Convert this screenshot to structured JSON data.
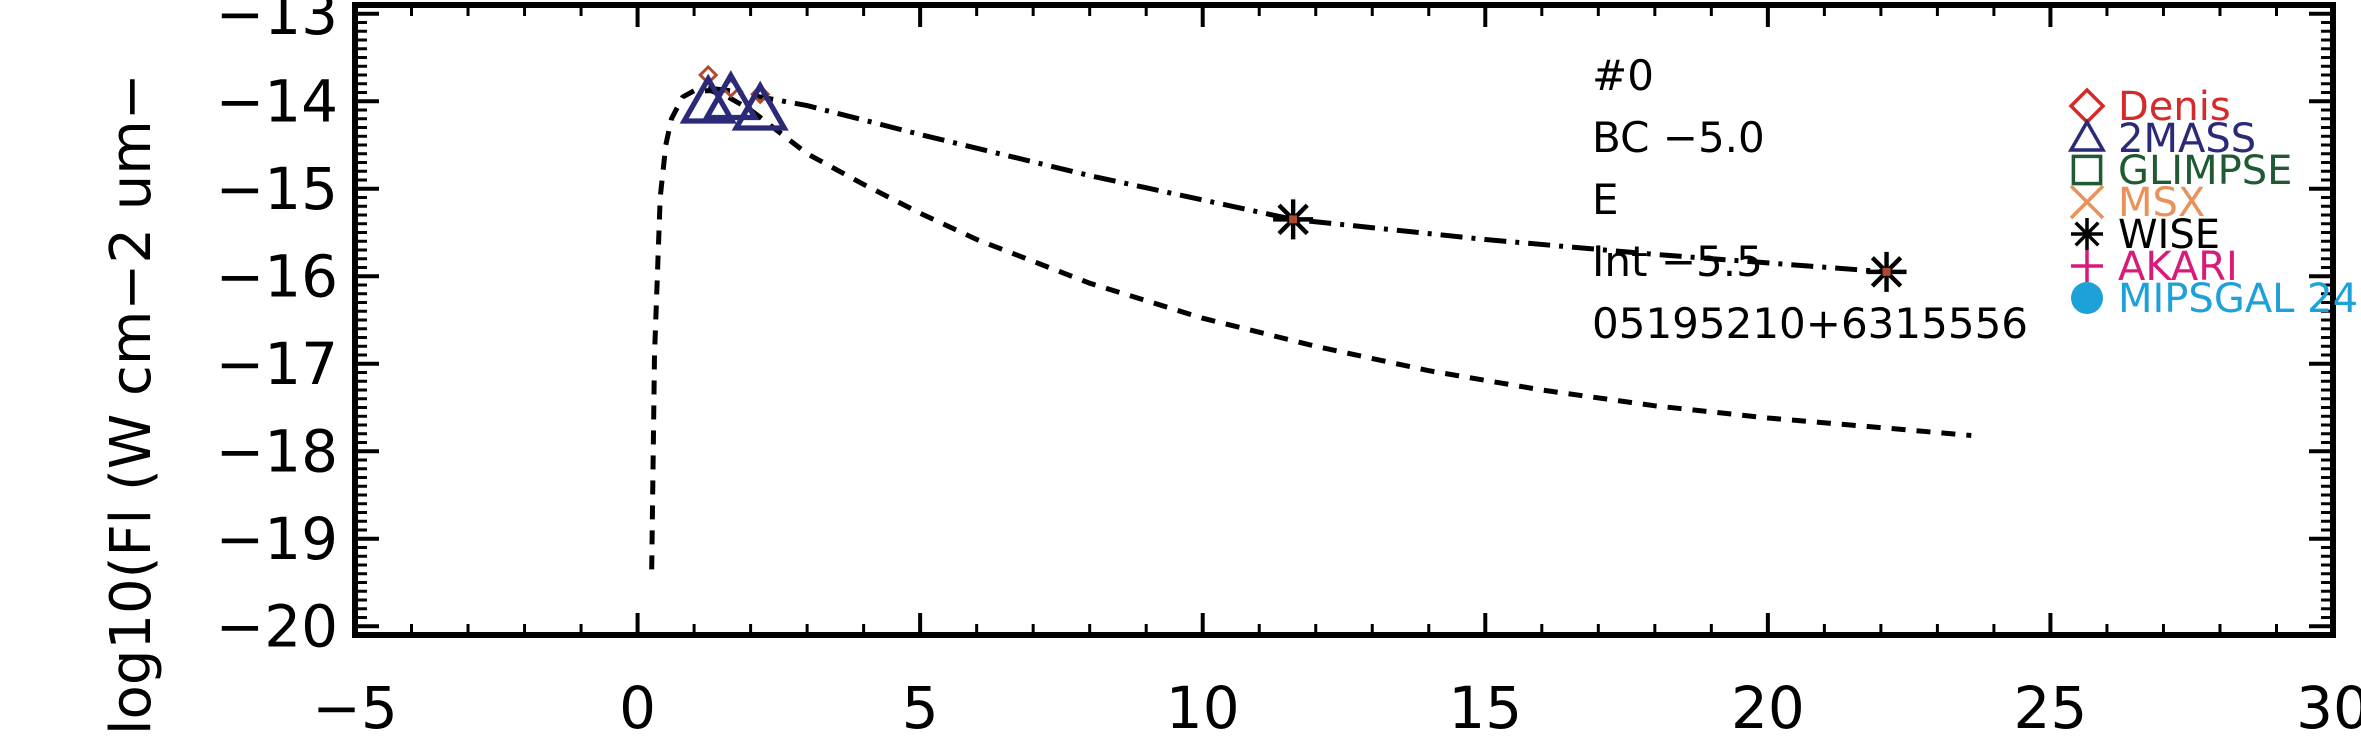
{
  "chart_data": {
    "type": "scatter",
    "ylabel": "log10(Fl (W cm−2 um−",
    "xlim": [
      -5,
      30
    ],
    "ylim": [
      -20.1,
      -12.9
    ],
    "x_ticks": [
      -5,
      0,
      5,
      10,
      15,
      20,
      25,
      30
    ],
    "x_tick_labels": [
      "−5",
      "0",
      "5",
      "10",
      "15",
      "20",
      "25",
      "30"
    ],
    "y_ticks": [
      -20,
      -19,
      -18,
      -17,
      -16,
      -15,
      -14,
      -13
    ],
    "y_tick_labels": [
      "−20",
      "−19",
      "−18",
      "−17",
      "−16",
      "−15",
      "−14",
      "−13"
    ],
    "annotations": [
      "#0",
      "BC  −5.0",
      "E",
      "Int  −5.5",
      "05195210+6315556"
    ],
    "legend": {
      "placement": "right",
      "entries": [
        {
          "name": "Denis",
          "marker": "diamond",
          "color": "#d42a2a"
        },
        {
          "name": "2MASS",
          "marker": "triangle",
          "color": "#2a2a78"
        },
        {
          "name": "GLIMPSE",
          "marker": "square",
          "color": "#1f5a34"
        },
        {
          "name": "MSX",
          "marker": "x",
          "color": "#e8925a"
        },
        {
          "name": "WISE",
          "marker": "asterisk",
          "color": "#000000"
        },
        {
          "name": "AKARI",
          "marker": "plus",
          "color": "#d81b78"
        },
        {
          "name": "MIPSGAL 24",
          "marker": "circle",
          "color": "#1ea0d8"
        }
      ]
    },
    "series": [
      {
        "name": "Denis",
        "marker": "diamond",
        "color": "#b04a2e",
        "x": [
          1.25,
          1.65,
          2.17
        ],
        "y": [
          -13.7,
          -13.85,
          -13.92
        ]
      },
      {
        "name": "2MASS",
        "marker": "triangle",
        "color": "#2a2a78",
        "x": [
          1.25,
          1.65,
          2.17
        ],
        "y": [
          -14.02,
          -13.98,
          -14.1
        ]
      },
      {
        "name": "WISE",
        "marker": "asterisk",
        "color": "#000000",
        "x": [
          11.6,
          22.1
        ],
        "y": [
          -15.35,
          -15.95
        ]
      }
    ],
    "curves": [
      {
        "style": "dashed",
        "color": "#000000",
        "x": [
          0.25,
          0.3,
          0.4,
          0.5,
          0.6,
          0.8,
          1.0,
          1.3,
          1.6,
          2.0,
          2.5,
          3.0,
          4.0,
          5.0,
          6.0,
          8.0,
          10.0,
          12.0,
          14.0,
          16.0,
          18.0,
          20.0,
          22.0,
          23.6
        ],
        "y": [
          -19.35,
          -16.9,
          -15.1,
          -14.5,
          -14.2,
          -13.95,
          -13.88,
          -13.88,
          -13.95,
          -14.1,
          -14.35,
          -14.6,
          -14.95,
          -15.28,
          -15.58,
          -16.08,
          -16.48,
          -16.8,
          -17.08,
          -17.3,
          -17.48,
          -17.62,
          -17.73,
          -17.82
        ]
      },
      {
        "style": "dashdot",
        "color": "#000000",
        "x": [
          1.25,
          1.65,
          2.17,
          3.0,
          5.0,
          8.0,
          11.6,
          15.0,
          18.0,
          22.1
        ],
        "y": [
          -13.85,
          -13.88,
          -13.95,
          -14.05,
          -14.38,
          -14.85,
          -15.35,
          -15.58,
          -15.75,
          -15.95
        ]
      }
    ]
  }
}
